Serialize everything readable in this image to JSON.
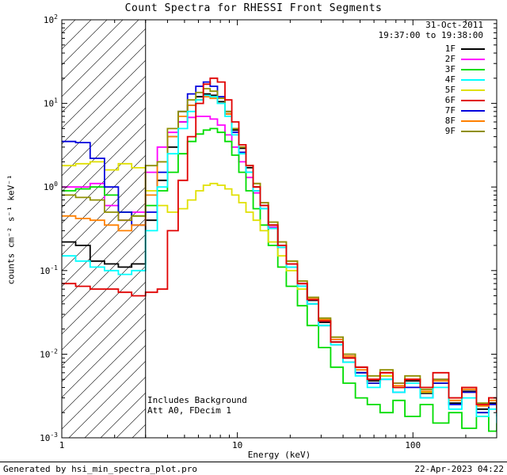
{
  "title": "Count Spectra for RHESSI Front Segments",
  "header": {
    "date": "31-Oct-2011",
    "time_range": "19:37:00 to 19:38:00"
  },
  "annotations": {
    "line1": "Includes Background",
    "line2": "Att A0, FDecim 1"
  },
  "footer": {
    "left": "Generated by hsi_min_spectra_plot.pro",
    "right": "22-Apr-2023 04:22"
  },
  "chart_data": {
    "type": "line",
    "subtype": "log-log step spectra",
    "title": "Count Spectra for RHESSI Front Segments",
    "xlabel": "Energy (keV)",
    "ylabel": "counts cm⁻² s⁻¹ keV⁻¹",
    "xlim": [
      1,
      300
    ],
    "ylim": [
      0.001,
      100
    ],
    "xscale": "log",
    "yscale": "log",
    "x_tick_labels": [
      "1",
      "10",
      "100"
    ],
    "y_tick_exponents": [
      -3,
      -2,
      -1,
      0,
      1,
      2
    ],
    "hatch_region": {
      "from": 1,
      "to": 3
    },
    "legend_position": "top-right",
    "draw_order": [
      "1F",
      "2F",
      "3F",
      "5F",
      "7F",
      "8F",
      "9F",
      "4F",
      "6F"
    ],
    "x": [
      1.0,
      1.2,
      1.45,
      1.75,
      2.1,
      2.5,
      3.0,
      3.5,
      4.0,
      4.6,
      5.2,
      5.8,
      6.4,
      7.0,
      7.7,
      8.5,
      9.3,
      10.2,
      11.2,
      12.3,
      13.5,
      15,
      17,
      19,
      22,
      25,
      29,
      34,
      40,
      47,
      55,
      65,
      77,
      90,
      110,
      130,
      160,
      190,
      230,
      270,
      300
    ],
    "series": [
      {
        "name": "1F",
        "color": "#000000",
        "values": [
          0.22,
          0.2,
          0.13,
          0.12,
          0.11,
          0.12,
          0.4,
          1.2,
          3.0,
          6.0,
          9.5,
          12,
          13,
          12.5,
          10.5,
          7.5,
          4.8,
          2.9,
          1.7,
          1.0,
          0.6,
          0.35,
          0.2,
          0.12,
          0.07,
          0.044,
          0.024,
          0.014,
          0.009,
          0.006,
          0.0048,
          0.0055,
          0.004,
          0.0048,
          0.0034,
          0.0045,
          0.0026,
          0.0036,
          0.0022,
          0.0026,
          0.002
        ]
      },
      {
        "name": "2F",
        "color": "#ff00ff",
        "values": [
          1.0,
          1.0,
          1.1,
          0.6,
          0.4,
          0.5,
          1.5,
          3.0,
          4.5,
          6.0,
          6.8,
          7.0,
          7.0,
          6.5,
          5.5,
          4.2,
          3.0,
          2.0,
          1.3,
          0.85,
          0.55,
          0.33,
          0.2,
          0.12,
          0.07,
          0.045,
          0.025,
          0.015,
          0.01,
          0.007,
          0.005,
          0.006,
          0.0045,
          0.005,
          0.0035,
          0.005,
          0.003,
          0.004,
          0.0025,
          0.003,
          0.0022
        ]
      },
      {
        "name": "3F",
        "color": "#00dd00",
        "values": [
          0.9,
          0.95,
          1.0,
          0.8,
          0.5,
          0.45,
          0.6,
          0.9,
          1.5,
          2.5,
          3.5,
          4.3,
          4.8,
          5.0,
          4.5,
          3.5,
          2.4,
          1.5,
          0.9,
          0.55,
          0.35,
          0.2,
          0.11,
          0.065,
          0.038,
          0.022,
          0.012,
          0.007,
          0.0045,
          0.003,
          0.0025,
          0.002,
          0.0028,
          0.0018,
          0.0025,
          0.0015,
          0.002,
          0.0013,
          0.0018,
          0.0012,
          0.0015
        ]
      },
      {
        "name": "4F",
        "color": "#00ffff",
        "values": [
          0.15,
          0.13,
          0.11,
          0.1,
          0.09,
          0.1,
          0.3,
          1.0,
          2.5,
          5.0,
          8.0,
          11,
          12.5,
          12,
          10,
          7.0,
          4.2,
          2.5,
          1.5,
          0.9,
          0.55,
          0.32,
          0.19,
          0.11,
          0.065,
          0.04,
          0.022,
          0.013,
          0.008,
          0.0055,
          0.004,
          0.005,
          0.0035,
          0.0045,
          0.003,
          0.004,
          0.0022,
          0.003,
          0.0018,
          0.0022,
          0.0015
        ]
      },
      {
        "name": "5F",
        "color": "#e0e000",
        "values": [
          1.8,
          1.9,
          2.0,
          1.6,
          1.9,
          1.7,
          0.9,
          0.6,
          0.5,
          0.55,
          0.7,
          0.9,
          1.05,
          1.1,
          1.05,
          0.95,
          0.8,
          0.65,
          0.5,
          0.4,
          0.3,
          0.22,
          0.15,
          0.1,
          0.06,
          0.04,
          0.022,
          0.013,
          0.008,
          0.006,
          0.0045,
          0.0055,
          0.004,
          0.005,
          0.0035,
          0.0045,
          0.0028,
          0.0035,
          0.002,
          0.0028,
          0.0018
        ]
      },
      {
        "name": "6F",
        "color": "#e00000",
        "values": [
          0.07,
          0.065,
          0.06,
          0.06,
          0.055,
          0.05,
          0.055,
          0.06,
          0.3,
          1.2,
          4.0,
          10,
          17,
          20,
          18,
          11,
          6.0,
          3.2,
          1.8,
          1.0,
          0.6,
          0.35,
          0.2,
          0.12,
          0.07,
          0.045,
          0.025,
          0.014,
          0.009,
          0.007,
          0.005,
          0.006,
          0.004,
          0.005,
          0.004,
          0.006,
          0.003,
          0.004,
          0.0025,
          0.003,
          0.002
        ]
      },
      {
        "name": "7F",
        "color": "#0000dd",
        "values": [
          3.5,
          3.4,
          2.2,
          1.0,
          0.5,
          0.35,
          0.5,
          1.5,
          4.0,
          8.0,
          13,
          16,
          18,
          16,
          12,
          8.0,
          4.5,
          2.6,
          1.5,
          0.9,
          0.55,
          0.32,
          0.19,
          0.11,
          0.065,
          0.04,
          0.022,
          0.013,
          0.008,
          0.006,
          0.0045,
          0.005,
          0.0035,
          0.004,
          0.003,
          0.0045,
          0.0025,
          0.0035,
          0.002,
          0.0025,
          0.0018
        ]
      },
      {
        "name": "8F",
        "color": "#ff8000",
        "values": [
          0.45,
          0.42,
          0.4,
          0.35,
          0.3,
          0.35,
          0.8,
          2.0,
          4.0,
          7.0,
          9.5,
          11,
          12,
          11.5,
          10,
          7.5,
          5.0,
          3.0,
          1.8,
          1.1,
          0.65,
          0.38,
          0.22,
          0.13,
          0.075,
          0.047,
          0.026,
          0.015,
          0.0095,
          0.0065,
          0.005,
          0.006,
          0.0042,
          0.005,
          0.0036,
          0.0048,
          0.0028,
          0.0038,
          0.0024,
          0.0028,
          0.0019
        ]
      },
      {
        "name": "9F",
        "color": "#8f8f00",
        "values": [
          0.8,
          0.75,
          0.7,
          0.5,
          0.4,
          0.45,
          1.8,
          2.0,
          5.0,
          8.0,
          11,
          13.5,
          15,
          14,
          11.5,
          8.0,
          5.0,
          3.0,
          1.8,
          1.1,
          0.65,
          0.38,
          0.22,
          0.13,
          0.075,
          0.048,
          0.027,
          0.016,
          0.01,
          0.007,
          0.0055,
          0.0065,
          0.0045,
          0.0055,
          0.0038,
          0.005,
          0.003,
          0.004,
          0.0026,
          0.003,
          0.002
        ]
      }
    ]
  }
}
